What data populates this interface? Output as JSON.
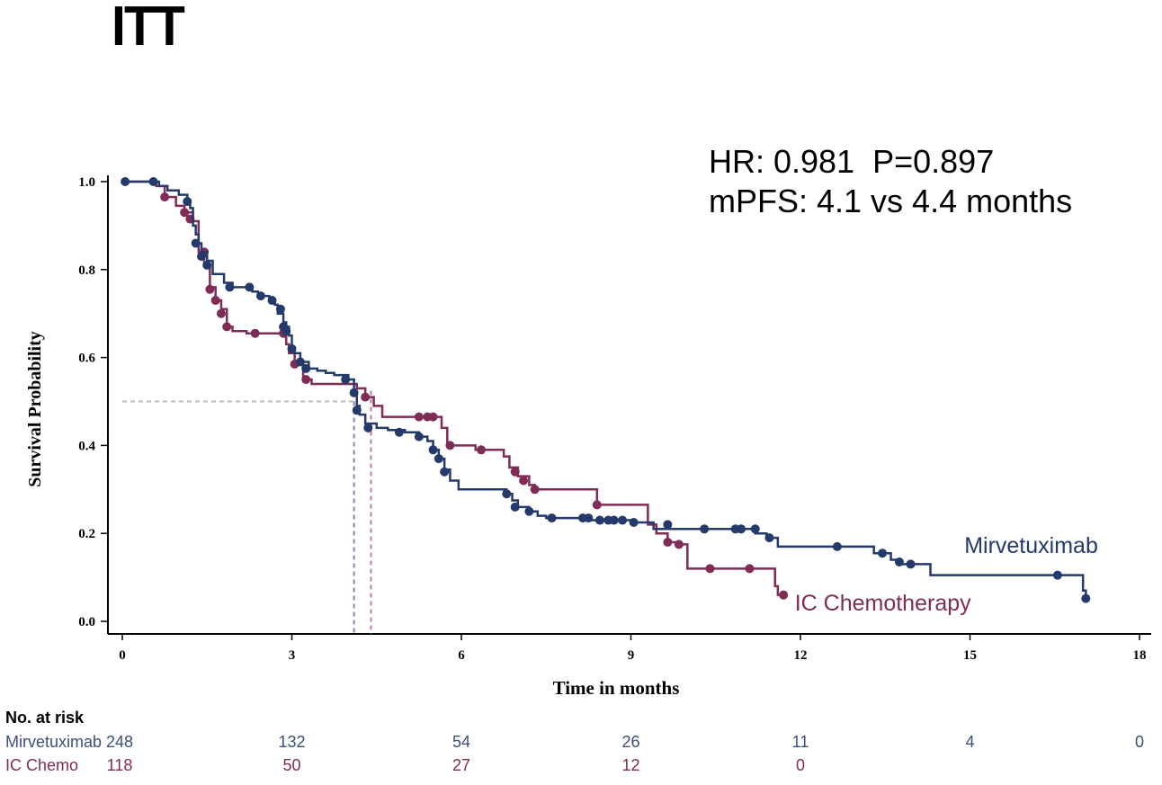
{
  "title": "ITT",
  "stats": {
    "line1": "HR: 0.981  P=0.897",
    "line2": "mPFS: 4.1 vs 4.4 months"
  },
  "colors": {
    "mirvetuximab": "#233a6b",
    "ic_chemo": "#7f2c57",
    "ref": "#bbbbbb"
  },
  "chart_data": {
    "type": "line",
    "subtype": "kaplan-meier",
    "xlabel": "Time in months",
    "ylabel": "Survival Probability",
    "xlim": [
      0,
      18
    ],
    "ylim": [
      0,
      1
    ],
    "xticks": [
      "0",
      "3",
      "6",
      "9",
      "12",
      "15",
      "18"
    ],
    "yticks": [
      "0.0",
      "0.2",
      "0.4",
      "0.6",
      "0.8",
      "1.0"
    ],
    "median_reference": {
      "y": 0.5,
      "x_mirvetuximab": 4.1,
      "x_ic_chemo": 4.4
    },
    "series": [
      {
        "name": "Mirvetuximab",
        "color_key": "mirvetuximab",
        "steps": [
          [
            0,
            1.0
          ],
          [
            0.55,
            1.0
          ],
          [
            0.65,
            0.99
          ],
          [
            0.8,
            0.98
          ],
          [
            1.0,
            0.97
          ],
          [
            1.15,
            0.955
          ],
          [
            1.2,
            0.94
          ],
          [
            1.25,
            0.9
          ],
          [
            1.3,
            0.88
          ],
          [
            1.35,
            0.86
          ],
          [
            1.4,
            0.84
          ],
          [
            1.5,
            0.82
          ],
          [
            1.6,
            0.79
          ],
          [
            1.8,
            0.77
          ],
          [
            1.95,
            0.76
          ],
          [
            2.2,
            0.76
          ],
          [
            2.3,
            0.75
          ],
          [
            2.4,
            0.74
          ],
          [
            2.6,
            0.73
          ],
          [
            2.7,
            0.72
          ],
          [
            2.75,
            0.7
          ],
          [
            2.85,
            0.68
          ],
          [
            2.9,
            0.67
          ],
          [
            2.95,
            0.65
          ],
          [
            3.0,
            0.62
          ],
          [
            3.05,
            0.61
          ],
          [
            3.15,
            0.59
          ],
          [
            3.3,
            0.575
          ],
          [
            3.45,
            0.57
          ],
          [
            3.6,
            0.565
          ],
          [
            3.75,
            0.56
          ],
          [
            4.0,
            0.55
          ],
          [
            4.1,
            0.52
          ],
          [
            4.15,
            0.49
          ],
          [
            4.2,
            0.47
          ],
          [
            4.3,
            0.45
          ],
          [
            4.5,
            0.44
          ],
          [
            4.7,
            0.435
          ],
          [
            5.0,
            0.43
          ],
          [
            5.25,
            0.42
          ],
          [
            5.4,
            0.41
          ],
          [
            5.5,
            0.39
          ],
          [
            5.6,
            0.37
          ],
          [
            5.7,
            0.345
          ],
          [
            5.8,
            0.32
          ],
          [
            5.95,
            0.3
          ],
          [
            6.8,
            0.29
          ],
          [
            6.9,
            0.275
          ],
          [
            7.0,
            0.26
          ],
          [
            7.2,
            0.25
          ],
          [
            7.35,
            0.24
          ],
          [
            7.5,
            0.235
          ],
          [
            8.0,
            0.235
          ],
          [
            8.3,
            0.23
          ],
          [
            8.8,
            0.23
          ],
          [
            9.0,
            0.225
          ],
          [
            9.4,
            0.21
          ],
          [
            9.9,
            0.21
          ],
          [
            10.35,
            0.21
          ],
          [
            11.0,
            0.21
          ],
          [
            11.2,
            0.2
          ],
          [
            11.4,
            0.19
          ],
          [
            11.6,
            0.17
          ],
          [
            12.8,
            0.17
          ],
          [
            13.3,
            0.155
          ],
          [
            13.6,
            0.14
          ],
          [
            13.75,
            0.13
          ],
          [
            14.3,
            0.105
          ],
          [
            16.5,
            0.105
          ],
          [
            17.0,
            0.07
          ],
          [
            17.05,
            0.05
          ]
        ],
        "censors": [
          [
            0.05,
            1.0
          ],
          [
            0.55,
            1.0
          ],
          [
            1.15,
            0.955
          ],
          [
            1.3,
            0.86
          ],
          [
            1.4,
            0.83
          ],
          [
            1.5,
            0.81
          ],
          [
            1.9,
            0.76
          ],
          [
            2.25,
            0.76
          ],
          [
            2.45,
            0.74
          ],
          [
            2.65,
            0.73
          ],
          [
            2.8,
            0.71
          ],
          [
            2.85,
            0.67
          ],
          [
            2.9,
            0.66
          ],
          [
            3.0,
            0.62
          ],
          [
            3.15,
            0.59
          ],
          [
            3.25,
            0.575
          ],
          [
            3.95,
            0.55
          ],
          [
            4.1,
            0.52
          ],
          [
            4.15,
            0.48
          ],
          [
            4.35,
            0.44
          ],
          [
            4.9,
            0.43
          ],
          [
            5.25,
            0.42
          ],
          [
            5.5,
            0.39
          ],
          [
            5.6,
            0.37
          ],
          [
            5.7,
            0.34
          ],
          [
            6.8,
            0.29
          ],
          [
            6.95,
            0.26
          ],
          [
            7.2,
            0.25
          ],
          [
            7.6,
            0.235
          ],
          [
            8.15,
            0.235
          ],
          [
            8.25,
            0.235
          ],
          [
            8.45,
            0.23
          ],
          [
            8.6,
            0.23
          ],
          [
            8.7,
            0.23
          ],
          [
            8.85,
            0.23
          ],
          [
            9.05,
            0.225
          ],
          [
            9.65,
            0.22
          ],
          [
            10.3,
            0.21
          ],
          [
            10.85,
            0.21
          ],
          [
            10.95,
            0.21
          ],
          [
            11.2,
            0.21
          ],
          [
            11.45,
            0.19
          ],
          [
            12.65,
            0.17
          ],
          [
            13.45,
            0.155
          ],
          [
            13.75,
            0.135
          ],
          [
            13.95,
            0.13
          ],
          [
            16.55,
            0.105
          ],
          [
            17.05,
            0.052
          ]
        ]
      },
      {
        "name": "IC Chemotherapy",
        "color_key": "ic_chemo",
        "steps": [
          [
            0,
            1.0
          ],
          [
            0.4,
            1.0
          ],
          [
            0.6,
            0.99
          ],
          [
            0.75,
            0.965
          ],
          [
            0.95,
            0.945
          ],
          [
            1.1,
            0.93
          ],
          [
            1.25,
            0.91
          ],
          [
            1.35,
            0.84
          ],
          [
            1.45,
            0.81
          ],
          [
            1.55,
            0.76
          ],
          [
            1.65,
            0.73
          ],
          [
            1.75,
            0.71
          ],
          [
            1.85,
            0.67
          ],
          [
            1.95,
            0.66
          ],
          [
            2.2,
            0.655
          ],
          [
            2.8,
            0.655
          ],
          [
            2.9,
            0.63
          ],
          [
            2.95,
            0.61
          ],
          [
            3.05,
            0.585
          ],
          [
            3.2,
            0.55
          ],
          [
            3.35,
            0.54
          ],
          [
            4.0,
            0.54
          ],
          [
            4.15,
            0.53
          ],
          [
            4.3,
            0.51
          ],
          [
            4.45,
            0.49
          ],
          [
            4.6,
            0.465
          ],
          [
            5.6,
            0.465
          ],
          [
            5.65,
            0.44
          ],
          [
            5.75,
            0.4
          ],
          [
            6.25,
            0.39
          ],
          [
            6.75,
            0.375
          ],
          [
            6.85,
            0.35
          ],
          [
            7.0,
            0.33
          ],
          [
            7.2,
            0.31
          ],
          [
            7.3,
            0.3
          ],
          [
            8.3,
            0.3
          ],
          [
            8.4,
            0.265
          ],
          [
            9.2,
            0.265
          ],
          [
            9.3,
            0.22
          ],
          [
            9.45,
            0.2
          ],
          [
            9.65,
            0.18
          ],
          [
            9.8,
            0.175
          ],
          [
            10.0,
            0.12
          ],
          [
            11.5,
            0.12
          ],
          [
            11.55,
            0.08
          ],
          [
            11.6,
            0.06
          ],
          [
            11.75,
            0.06
          ]
        ],
        "censors": [
          [
            0.75,
            0.965
          ],
          [
            1.1,
            0.93
          ],
          [
            1.2,
            0.915
          ],
          [
            1.45,
            0.84
          ],
          [
            1.55,
            0.755
          ],
          [
            1.65,
            0.73
          ],
          [
            1.75,
            0.7
          ],
          [
            1.85,
            0.67
          ],
          [
            2.35,
            0.655
          ],
          [
            2.85,
            0.655
          ],
          [
            3.05,
            0.585
          ],
          [
            3.25,
            0.55
          ],
          [
            4.3,
            0.51
          ],
          [
            5.25,
            0.465
          ],
          [
            5.4,
            0.465
          ],
          [
            5.5,
            0.465
          ],
          [
            5.8,
            0.4
          ],
          [
            6.35,
            0.39
          ],
          [
            6.95,
            0.34
          ],
          [
            7.1,
            0.32
          ],
          [
            7.3,
            0.3
          ],
          [
            8.4,
            0.265
          ],
          [
            9.65,
            0.18
          ],
          [
            9.85,
            0.175
          ],
          [
            10.4,
            0.12
          ],
          [
            11.1,
            0.12
          ],
          [
            11.7,
            0.06
          ]
        ]
      }
    ],
    "annotations": [
      {
        "text": "Mirvetuximab",
        "x": 14.9,
        "y": 0.155,
        "color_key": "mirvetuximab"
      },
      {
        "text": "IC Chemotherapy",
        "x": 11.9,
        "y": 0.025,
        "color_key": "ic_chemo"
      }
    ]
  },
  "risk_table": {
    "header": "No. at risk",
    "times": [
      0,
      3,
      6,
      9,
      12,
      15,
      18
    ],
    "rows": [
      {
        "label": "Mirvetuximab",
        "values": [
          "248",
          "132",
          "54",
          "26",
          "11",
          "4",
          "0"
        ]
      },
      {
        "label": "IC Chemo",
        "values": [
          "118",
          "50",
          "27",
          "12",
          "0"
        ]
      }
    ]
  }
}
